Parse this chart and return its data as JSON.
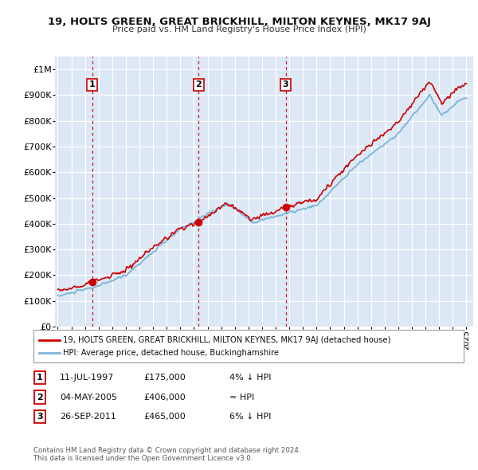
{
  "title": "19, HOLTS GREEN, GREAT BRICKHILL, MILTON KEYNES, MK17 9AJ",
  "subtitle": "Price paid vs. HM Land Registry's House Price Index (HPI)",
  "sale_dates_decimal": [
    1997.536,
    2005.338,
    2011.735
  ],
  "sale_prices": [
    175000,
    406000,
    465000
  ],
  "sale_labels": [
    "1",
    "2",
    "3"
  ],
  "legend_line1": "19, HOLTS GREEN, GREAT BRICKHILL, MILTON KEYNES, MK17 9AJ (detached house)",
  "legend_line2": "HPI: Average price, detached house, Buckinghamshire",
  "table_rows": [
    [
      "1",
      "11-JUL-1997",
      "£175,000",
      "4% ↓ HPI"
    ],
    [
      "2",
      "04-MAY-2005",
      "£406,000",
      "≈ HPI"
    ],
    [
      "3",
      "26-SEP-2011",
      "£465,000",
      "6% ↓ HPI"
    ]
  ],
  "footnote1": "Contains HM Land Registry data © Crown copyright and database right 2024.",
  "footnote2": "This data is licensed under the Open Government Licence v3.0.",
  "hpi_color": "#7bb3d9",
  "sale_color": "#cc0000",
  "dashed_line_color": "#cc0000",
  "background_color": "#dce8f5",
  "grid_color": "#ffffff",
  "ylim": [
    0,
    1050000
  ],
  "yticks": [
    0,
    100000,
    200000,
    300000,
    400000,
    500000,
    600000,
    700000,
    800000,
    900000,
    1000000
  ],
  "ytick_labels": [
    "£0",
    "£100K",
    "£200K",
    "£300K",
    "£400K",
    "£500K",
    "£600K",
    "£700K",
    "£800K",
    "£900K",
    "£1M"
  ],
  "xlim_start": 1994.8,
  "xlim_end": 2025.5
}
